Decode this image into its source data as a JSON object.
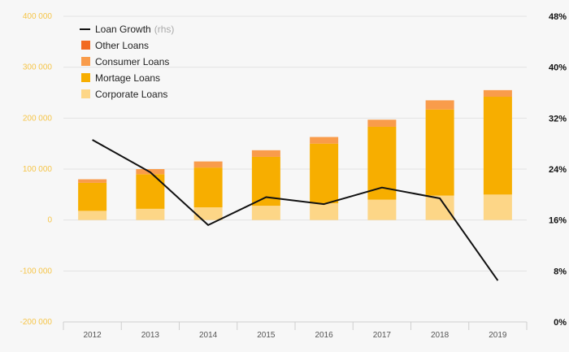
{
  "chart_data": {
    "type": "bar",
    "categories": [
      "2012",
      "2013",
      "2014",
      "2015",
      "2016",
      "2017",
      "2018",
      "2019"
    ],
    "series": [
      {
        "name": "Corporate Loans",
        "kind": "stacked-bar",
        "color": "#fdd687",
        "values": [
          18000,
          22000,
          25000,
          28000,
          33000,
          40000,
          48000,
          50000
        ]
      },
      {
        "name": "Mortage Loans",
        "kind": "stacked-bar",
        "color": "#f7ae00",
        "values": [
          55000,
          68000,
          78000,
          96000,
          117000,
          143000,
          169000,
          192000
        ]
      },
      {
        "name": "Consumer Loans",
        "kind": "stacked-bar",
        "color": "#f99c4b",
        "values": [
          7000,
          10000,
          12000,
          13000,
          13000,
          14000,
          18000,
          13000
        ]
      },
      {
        "name": "Other Loans",
        "kind": "stacked-bar",
        "color": "#f26a21",
        "values": [
          0,
          0,
          0,
          0,
          0,
          0,
          0,
          0
        ]
      },
      {
        "name": "Loan Growth",
        "name_suffix": "(rhs)",
        "kind": "line",
        "axis": "right",
        "color": "#111111",
        "values": [
          28.6,
          23.5,
          15.2,
          19.6,
          18.5,
          21.1,
          19.4,
          6.5
        ]
      }
    ],
    "legend": [
      "Loan Growth",
      "Other Loans",
      "Consumer Loans",
      "Mortage Loans",
      "Corporate Loans"
    ],
    "legend_position": "top-left",
    "y_left": {
      "min": -200000,
      "max": 400000,
      "ticks": [
        400000,
        300000,
        200000,
        100000,
        0,
        -100000,
        -200000
      ],
      "tick_labels": [
        "400 000",
        "300 000",
        "200 000",
        "100 000",
        "0",
        "-100 000",
        "-200 000"
      ]
    },
    "y_right": {
      "min": 0,
      "max": 48,
      "ticks": [
        48,
        40,
        32,
        24,
        16,
        8,
        0
      ],
      "tick_labels": [
        "48%",
        "40%",
        "32%",
        "24%",
        "16%",
        "8%",
        "0%"
      ]
    },
    "grid": true,
    "title": "",
    "xlabel": "",
    "ylabel": ""
  }
}
